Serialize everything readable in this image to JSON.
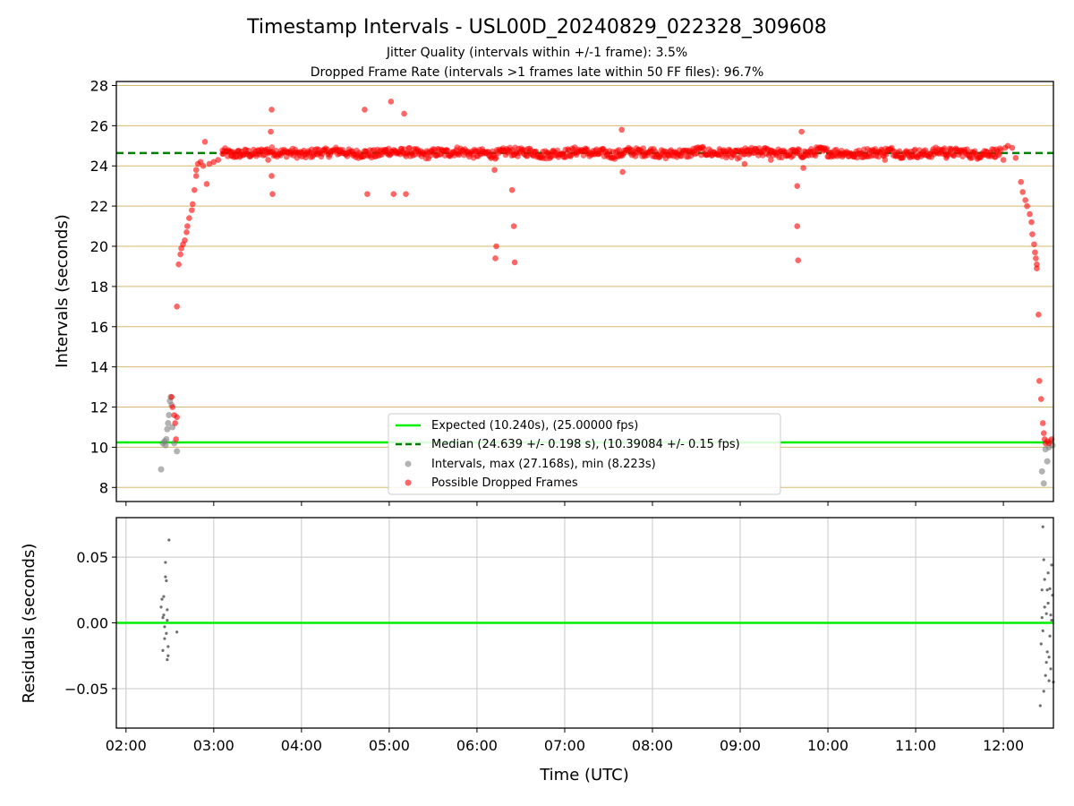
{
  "chart_data": {
    "type": "scatter",
    "title": "Timestamp Intervals - USL00D_20240829_022328_309608",
    "subtitle_lines": [
      "Jitter Quality (intervals within +/-1 frame): 3.5%",
      "Dropped Frame Rate (intervals >1 frames late within 50 FF files): 96.7%"
    ],
    "xlabel": "Time (UTC)",
    "x_tick_labels": [
      "02:00",
      "03:00",
      "04:00",
      "05:00",
      "06:00",
      "07:00",
      "08:00",
      "09:00",
      "10:00",
      "11:00",
      "12:00"
    ],
    "x_tick_hours": [
      2,
      3,
      4,
      5,
      6,
      7,
      8,
      9,
      10,
      11,
      12
    ],
    "xlim_hours": [
      1.89,
      12.57
    ],
    "colors": {
      "expected": "#00ee00",
      "median": "#008000",
      "intervals": "#808080",
      "dropped": "#ff0000",
      "grid_top": "#d8b86c",
      "grid_bottom": "#c8c8c8"
    },
    "panels": [
      {
        "name": "intervals",
        "ylabel": "Intervals (seconds)",
        "ylim": [
          7.3,
          28.2
        ],
        "yticks": [
          8,
          10,
          12,
          14,
          16,
          18,
          20,
          22,
          24,
          26,
          28
        ],
        "ytick_labels": [
          "8",
          "10",
          "12",
          "14",
          "16",
          "18",
          "20",
          "22",
          "24",
          "26",
          "28"
        ],
        "expected_value": 10.24,
        "median_value": 24.639,
        "legend": {
          "position": "lower center",
          "entries": [
            "Expected (10.240s), (25.00000 fps)",
            "Median (24.639 +/- 0.198 s), (10.39084 +/- 0.15 fps)",
            "Intervals, max (27.168s), min (8.223s)",
            "Possible Dropped Frames"
          ]
        },
        "series": [
          {
            "name": "Intervals, max (27.168s), min (8.223s)",
            "color": "#808080",
            "points": [
              [
                2.4,
                8.9
              ],
              [
                2.42,
                10.2
              ],
              [
                2.44,
                10.3
              ],
              [
                2.45,
                10.1
              ],
              [
                2.46,
                10.4
              ],
              [
                2.47,
                10.9
              ],
              [
                2.48,
                11.2
              ],
              [
                2.49,
                11.6
              ],
              [
                2.5,
                12.3
              ],
              [
                2.51,
                12.5
              ],
              [
                2.52,
                12.1
              ],
              [
                2.53,
                11.0
              ],
              [
                2.55,
                10.2
              ],
              [
                2.58,
                9.8
              ],
              [
                12.44,
                8.8
              ],
              [
                12.46,
                8.2
              ],
              [
                12.48,
                9.9
              ],
              [
                12.5,
                9.3
              ],
              [
                12.52,
                10.0
              ],
              [
                12.54,
                10.3
              ],
              [
                12.56,
                10.1
              ]
            ]
          },
          {
            "name": "Possible Dropped Frames",
            "color": "#ff0000",
            "band": {
              "x_start": 3.1,
              "x_end": 11.97,
              "y_center": 24.65,
              "y_spread": 0.22
            },
            "points": [
              [
                2.52,
                12.5
              ],
              [
                2.53,
                12.0
              ],
              [
                2.55,
                11.6
              ],
              [
                2.56,
                11.2
              ],
              [
                2.57,
                10.4
              ],
              [
                2.58,
                11.5
              ],
              [
                2.58,
                17.0
              ],
              [
                2.6,
                19.1
              ],
              [
                2.62,
                19.6
              ],
              [
                2.63,
                19.9
              ],
              [
                2.65,
                20.1
              ],
              [
                2.67,
                20.3
              ],
              [
                2.69,
                20.7
              ],
              [
                2.7,
                21.0
              ],
              [
                2.72,
                21.4
              ],
              [
                2.75,
                21.8
              ],
              [
                2.76,
                22.1
              ],
              [
                2.78,
                22.8
              ],
              [
                2.8,
                23.5
              ],
              [
                2.8,
                23.8
              ],
              [
                2.82,
                24.1
              ],
              [
                2.85,
                24.2
              ],
              [
                2.88,
                24.0
              ],
              [
                2.9,
                25.2
              ],
              [
                2.92,
                23.1
              ],
              [
                2.95,
                24.1
              ],
              [
                3.0,
                24.2
              ],
              [
                3.05,
                24.3
              ],
              [
                3.1,
                24.6
              ],
              [
                3.2,
                24.5
              ],
              [
                3.3,
                24.5
              ],
              [
                3.62,
                24.3
              ],
              [
                3.65,
                25.7
              ],
              [
                3.66,
                26.8
              ],
              [
                3.66,
                23.5
              ],
              [
                3.67,
                22.6
              ],
              [
                4.72,
                26.8
              ],
              [
                4.75,
                22.6
              ],
              [
                5.02,
                27.2
              ],
              [
                5.05,
                22.6
              ],
              [
                5.17,
                26.6
              ],
              [
                5.19,
                22.6
              ],
              [
                6.2,
                23.8
              ],
              [
                6.21,
                19.4
              ],
              [
                6.22,
                20.0
              ],
              [
                6.4,
                22.8
              ],
              [
                6.42,
                21.0
              ],
              [
                6.43,
                19.2
              ],
              [
                7.65,
                25.8
              ],
              [
                7.66,
                23.7
              ],
              [
                9.05,
                24.1
              ],
              [
                9.35,
                24.3
              ],
              [
                9.65,
                23.0
              ],
              [
                9.65,
                21.0
              ],
              [
                9.66,
                19.3
              ],
              [
                9.7,
                25.7
              ],
              [
                9.72,
                23.9
              ],
              [
                10.65,
                24.3
              ],
              [
                11.35,
                24.4
              ],
              [
                12.0,
                24.3
              ],
              [
                12.02,
                24.9
              ],
              [
                12.05,
                25.0
              ],
              [
                12.1,
                24.9
              ],
              [
                12.14,
                24.4
              ],
              [
                12.2,
                23.2
              ],
              [
                12.22,
                22.7
              ],
              [
                12.25,
                22.3
              ],
              [
                12.27,
                22.0
              ],
              [
                12.3,
                21.6
              ],
              [
                12.32,
                21.2
              ],
              [
                12.33,
                20.6
              ],
              [
                12.35,
                20.1
              ],
              [
                12.36,
                19.7
              ],
              [
                12.37,
                19.4
              ],
              [
                12.38,
                19.1
              ],
              [
                12.38,
                18.9
              ],
              [
                12.4,
                16.6
              ],
              [
                12.41,
                13.3
              ],
              [
                12.43,
                12.4
              ],
              [
                12.45,
                11.2
              ],
              [
                12.46,
                10.7
              ],
              [
                12.47,
                10.4
              ],
              [
                12.48,
                10.2
              ],
              [
                12.5,
                10.3
              ],
              [
                12.52,
                10.2
              ],
              [
                12.55,
                10.4
              ]
            ]
          }
        ]
      },
      {
        "name": "residuals",
        "ylabel": "Residuals (seconds)",
        "ylim": [
          -0.08,
          0.08
        ],
        "yticks": [
          -0.05,
          0.0,
          0.05
        ],
        "ytick_labels": [
          "−0.05",
          "0.00",
          "0.05"
        ],
        "zero_line_value": 0,
        "series": [
          {
            "name": "Residuals",
            "color": "#707070",
            "points": [
              [
                2.4,
                0.012
              ],
              [
                2.41,
                0.018
              ],
              [
                2.42,
                -0.021
              ],
              [
                2.43,
                0.006
              ],
              [
                2.44,
                -0.012
              ],
              [
                2.45,
                0.046
              ],
              [
                2.46,
                0.032
              ],
              [
                2.47,
                0.002
              ],
              [
                2.48,
                -0.025
              ],
              [
                2.49,
                0.063
              ],
              [
                2.43,
                0.02
              ],
              [
                2.44,
                -0.003
              ],
              [
                2.46,
                -0.008
              ],
              [
                2.47,
                0.01
              ],
              [
                2.48,
                -0.018
              ],
              [
                2.45,
                0.035
              ],
              [
                2.47,
                -0.028
              ],
              [
                2.42,
                0.004
              ],
              [
                2.58,
                -0.007
              ],
              [
                12.42,
                -0.063
              ],
              [
                12.44,
                0.025
              ],
              [
                12.45,
                0.073
              ],
              [
                12.46,
                0.048
              ],
              [
                12.47,
                0.033
              ],
              [
                12.48,
                -0.04
              ],
              [
                12.49,
                0.007
              ],
              [
                12.5,
                -0.022
              ],
              [
                12.51,
                0.015
              ],
              [
                12.52,
                -0.044
              ],
              [
                12.53,
                0.026
              ],
              [
                12.54,
                -0.035
              ],
              [
                12.55,
                0.002
              ],
              [
                12.56,
                0.021
              ],
              [
                12.43,
                -0.016
              ],
              [
                12.45,
                -0.006
              ],
              [
                12.47,
                0.012
              ],
              [
                12.49,
                -0.03
              ],
              [
                12.51,
                0.038
              ],
              [
                12.53,
                -0.01
              ],
              [
                12.55,
                0.044
              ],
              [
                12.57,
                -0.045
              ],
              [
                12.44,
                0.004
              ],
              [
                12.5,
                0.025
              ],
              [
                12.52,
                -0.026
              ],
              [
                12.46,
                -0.052
              ],
              [
                12.54,
                0.006
              ]
            ]
          }
        ]
      }
    ]
  }
}
